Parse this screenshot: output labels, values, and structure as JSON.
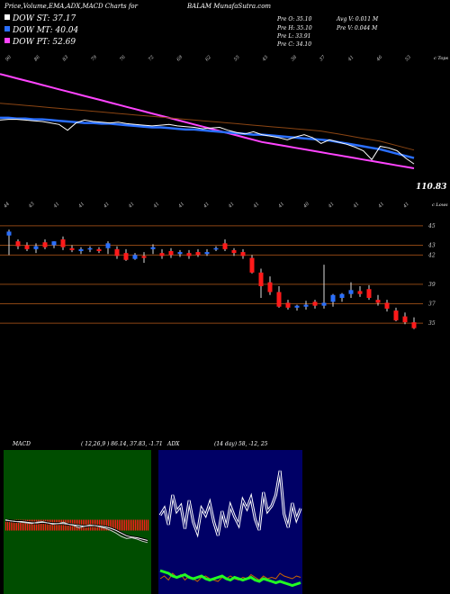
{
  "header": {
    "title_left": "Price,Volume,EMA,ADX,MACD Charts for",
    "title_right": "BALAM MunafaSutra.com"
  },
  "legend": [
    {
      "label": "DOW ST: 37.17",
      "color": "#ffffff"
    },
    {
      "label": "DOW MT: 40.04",
      "color": "#2a6fff"
    },
    {
      "label": "DOW PT: 52.69",
      "color": "#ff44ff"
    }
  ],
  "stats": {
    "prev": [
      "Pre O: 35.10",
      "Pre H: 35.10",
      "Pre L: 33.91",
      "Pre C: 34.10"
    ],
    "avg": [
      "Avg V: 0.011 M",
      "Pre V: 0.044 M"
    ]
  },
  "colors": {
    "up": "#2a6fff",
    "down": "#ff1a1a",
    "ema_fast": "#ffffff",
    "ema_mid": "#2a6fff",
    "ema_slow": "#ff44ff",
    "ema_long": "#8b4513",
    "macd_bg": "#004d00",
    "adx_bg": "#000066"
  },
  "chart_data": [
    {
      "type": "line",
      "name": "price-ema-panel",
      "right_label": "c Tops",
      "last_value_label": "110.83",
      "top_tick_labels": [
        "90",
        "86",
        "83",
        "79",
        "76",
        "72",
        "69",
        "62",
        "55",
        "45",
        "38",
        "37",
        "41",
        "46",
        "53"
      ],
      "series": [
        {
          "name": "",
          "color": "#ff44ff",
          "values": [
            245,
            242,
            239,
            236,
            233,
            230,
            227,
            224,
            221,
            218,
            215,
            212,
            209,
            206,
            203,
            200,
            197,
            194,
            191,
            188,
            185,
            182,
            179,
            176,
            173,
            170,
            167,
            164,
            161,
            158,
            155,
            152,
            150,
            148,
            146,
            144,
            142,
            140,
            138,
            136,
            134,
            132,
            130,
            128,
            126,
            124,
            122,
            120,
            118,
            116
          ]
        },
        {
          "name": "",
          "color": "#8b4513",
          "values": [
            205,
            204,
            203,
            202,
            201,
            200,
            199,
            198,
            197,
            196,
            195,
            194,
            193,
            192,
            191,
            190,
            189,
            188,
            187,
            186,
            185,
            184,
            183,
            182,
            181,
            180,
            179,
            178,
            177,
            176,
            175,
            174,
            173,
            172,
            171,
            170,
            169,
            168,
            167,
            165,
            163,
            161,
            159,
            157,
            155,
            153,
            150,
            147,
            144,
            141
          ]
        },
        {
          "name": "",
          "color": "#2a6fff",
          "values": [
            185,
            185,
            184,
            184,
            183,
            183,
            182,
            181,
            180,
            179,
            178,
            178,
            177,
            177,
            176,
            175,
            174,
            173,
            172,
            172,
            171,
            170,
            169,
            169,
            168,
            167,
            166,
            165,
            164,
            163,
            162,
            162,
            161,
            160,
            159,
            158,
            157,
            156,
            155,
            154,
            152,
            150,
            148,
            146,
            144,
            142,
            139,
            136,
            133,
            130
          ]
        },
        {
          "name": "",
          "color": "#ffffff",
          "values": [
            182,
            183,
            183,
            182,
            181,
            180,
            178,
            176,
            168,
            178,
            182,
            180,
            179,
            178,
            179,
            177,
            176,
            175,
            174,
            175,
            176,
            174,
            173,
            172,
            170,
            171,
            172,
            168,
            165,
            163,
            166,
            162,
            160,
            158,
            155,
            159,
            162,
            158,
            150,
            155,
            152,
            149,
            145,
            140,
            128,
            146,
            144,
            140,
            130,
            122
          ]
        }
      ],
      "y_range": [
        100,
        260
      ]
    },
    {
      "type": "candlestick",
      "name": "price-candles-panel",
      "right_label": "c Lows",
      "top_tick_labels": [
        "44",
        "43",
        "41",
        "41",
        "41",
        "41",
        "41",
        "41",
        "41",
        "41",
        "41",
        "41",
        "40",
        "41",
        "41",
        "41",
        "41"
      ],
      "y_tick_labels": [
        "45",
        "43",
        "42",
        "39",
        "37",
        "35"
      ],
      "y_ticks": [
        45,
        43,
        42,
        39,
        37,
        35
      ],
      "y_range": [
        34,
        46
      ],
      "candles": [
        {
          "o": 44.0,
          "h": 44.6,
          "l": 42.0,
          "c": 44.4
        },
        {
          "o": 43.4,
          "h": 43.6,
          "l": 42.6,
          "c": 42.9
        },
        {
          "o": 43.0,
          "h": 43.3,
          "l": 42.4,
          "c": 42.6
        },
        {
          "o": 42.6,
          "h": 43.2,
          "l": 42.2,
          "c": 42.9
        },
        {
          "o": 43.3,
          "h": 43.6,
          "l": 42.6,
          "c": 42.8
        },
        {
          "o": 43.0,
          "h": 43.4,
          "l": 42.7,
          "c": 43.4
        },
        {
          "o": 43.6,
          "h": 43.9,
          "l": 42.5,
          "c": 42.8
        },
        {
          "o": 42.7,
          "h": 43.0,
          "l": 42.3,
          "c": 42.5
        },
        {
          "o": 42.4,
          "h": 42.8,
          "l": 42.1,
          "c": 42.6
        },
        {
          "o": 42.6,
          "h": 42.9,
          "l": 42.3,
          "c": 42.7
        },
        {
          "o": 42.6,
          "h": 42.8,
          "l": 42.2,
          "c": 42.4
        },
        {
          "o": 42.7,
          "h": 43.4,
          "l": 42.1,
          "c": 43.2
        },
        {
          "o": 42.6,
          "h": 42.9,
          "l": 41.6,
          "c": 41.9
        },
        {
          "o": 42.2,
          "h": 42.6,
          "l": 41.4,
          "c": 41.5
        },
        {
          "o": 41.6,
          "h": 42.2,
          "l": 41.5,
          "c": 42.0
        },
        {
          "o": 41.9,
          "h": 42.3,
          "l": 41.2,
          "c": 41.7
        },
        {
          "o": 42.6,
          "h": 43.1,
          "l": 42.1,
          "c": 42.8
        },
        {
          "o": 42.2,
          "h": 42.6,
          "l": 41.6,
          "c": 41.9
        },
        {
          "o": 42.4,
          "h": 42.7,
          "l": 41.7,
          "c": 42.0
        },
        {
          "o": 42.1,
          "h": 42.5,
          "l": 41.8,
          "c": 42.3
        },
        {
          "o": 42.2,
          "h": 42.5,
          "l": 41.6,
          "c": 41.9
        },
        {
          "o": 42.3,
          "h": 42.6,
          "l": 41.8,
          "c": 42.0
        },
        {
          "o": 42.1,
          "h": 42.6,
          "l": 41.9,
          "c": 42.3
        },
        {
          "o": 42.6,
          "h": 42.9,
          "l": 42.4,
          "c": 42.7
        },
        {
          "o": 43.2,
          "h": 43.6,
          "l": 42.4,
          "c": 42.6
        },
        {
          "o": 42.5,
          "h": 42.7,
          "l": 41.9,
          "c": 42.2
        },
        {
          "o": 42.3,
          "h": 42.6,
          "l": 41.6,
          "c": 41.9
        },
        {
          "o": 41.7,
          "h": 42.0,
          "l": 40.1,
          "c": 40.2
        },
        {
          "o": 40.2,
          "h": 40.6,
          "l": 37.6,
          "c": 38.8
        },
        {
          "o": 39.2,
          "h": 39.8,
          "l": 37.9,
          "c": 38.2
        },
        {
          "o": 38.2,
          "h": 38.8,
          "l": 36.6,
          "c": 36.7
        },
        {
          "o": 37.1,
          "h": 37.4,
          "l": 36.4,
          "c": 36.6
        },
        {
          "o": 36.6,
          "h": 36.9,
          "l": 36.3,
          "c": 36.8
        },
        {
          "o": 36.7,
          "h": 37.3,
          "l": 36.4,
          "c": 36.9
        },
        {
          "o": 37.2,
          "h": 37.4,
          "l": 36.5,
          "c": 36.8
        },
        {
          "o": 36.8,
          "h": 41.0,
          "l": 36.5,
          "c": 37.1
        },
        {
          "o": 37.2,
          "h": 38.0,
          "l": 36.7,
          "c": 37.9
        },
        {
          "o": 37.6,
          "h": 38.1,
          "l": 37.2,
          "c": 38.0
        },
        {
          "o": 38.0,
          "h": 39.2,
          "l": 37.6,
          "c": 38.4
        },
        {
          "o": 38.3,
          "h": 38.8,
          "l": 37.7,
          "c": 38.0
        },
        {
          "o": 38.5,
          "h": 38.9,
          "l": 37.4,
          "c": 37.6
        },
        {
          "o": 37.4,
          "h": 37.9,
          "l": 36.8,
          "c": 37.1
        },
        {
          "o": 37.1,
          "h": 37.4,
          "l": 36.2,
          "c": 36.5
        },
        {
          "o": 36.3,
          "h": 36.6,
          "l": 35.2,
          "c": 35.3
        },
        {
          "o": 35.7,
          "h": 36.1,
          "l": 34.9,
          "c": 35.1
        },
        {
          "o": 35.1,
          "h": 35.6,
          "l": 34.4,
          "c": 34.5
        }
      ]
    },
    {
      "type": "bar",
      "name": "macd-panel",
      "label": "MACD",
      "params": "( 12,26,9 ) 86.14, 37.83, -1.71",
      "hist": [
        3,
        3,
        3,
        3,
        3,
        3,
        3,
        3,
        3,
        3,
        3,
        3,
        3,
        3,
        3,
        3,
        3,
        3,
        3,
        3,
        3,
        3,
        3,
        3,
        3,
        3,
        3,
        3,
        3,
        3,
        3,
        3,
        3,
        3,
        3,
        3,
        3,
        3,
        3,
        3,
        3,
        3,
        3,
        3,
        3,
        3,
        3,
        3,
        3,
        3,
        3,
        3,
        3,
        3,
        3,
        3,
        3,
        3,
        3,
        3,
        3,
        3,
        3,
        3,
        3,
        3,
        3,
        3,
        3,
        3,
        3,
        3,
        3,
        3,
        3,
        3,
        3,
        3,
        3,
        3
      ],
      "macd_line": [
        2.2,
        2.0,
        1.9,
        1.8,
        1.7,
        1.6,
        1.8,
        1.9,
        1.7,
        1.5,
        1.6,
        1.8,
        1.5,
        1.3,
        1.0,
        1.2,
        1.4,
        1.3,
        1.1,
        0.9,
        0.6,
        0.2,
        -0.3,
        -0.6,
        -0.5,
        -0.7,
        -1.0,
        -1.2
      ],
      "signal_line": [
        2.1,
        2.0,
        1.9,
        1.9,
        1.8,
        1.7,
        1.7,
        1.8,
        1.7,
        1.6,
        1.6,
        1.6,
        1.5,
        1.4,
        1.3,
        1.2,
        1.3,
        1.3,
        1.2,
        1.1,
        0.9,
        0.6,
        0.2,
        -0.2,
        -0.4,
        -0.5,
        -0.7,
        -0.9
      ]
    },
    {
      "type": "line",
      "name": "adx-panel",
      "label": "ADX",
      "params": "(14 day) 58, -12, 25",
      "y_range": [
        0,
        100
      ],
      "plus_di": [
        55,
        60,
        48,
        70,
        58,
        62,
        45,
        66,
        50,
        42,
        60,
        55,
        64,
        50,
        40,
        58,
        46,
        62,
        54,
        48,
        66,
        60,
        68,
        52,
        44,
        72,
        58,
        62,
        70,
        88,
        56,
        46,
        64,
        52,
        60
      ],
      "minus_di": [
        8,
        10,
        7,
        12,
        9,
        11,
        7,
        10,
        8,
        6,
        9,
        10,
        8,
        7,
        6,
        9,
        8,
        10,
        8,
        7,
        9,
        8,
        11,
        9,
        7,
        10,
        8,
        9,
        8,
        12,
        10,
        9,
        8,
        10,
        9
      ],
      "adx": [
        14,
        13,
        12,
        10,
        9,
        10,
        11,
        9,
        8,
        9,
        10,
        8,
        7,
        8,
        9,
        10,
        8,
        7,
        9,
        8,
        7,
        8,
        9,
        7,
        6,
        8,
        7,
        6,
        5,
        6,
        5,
        4,
        3,
        4,
        5
      ]
    }
  ]
}
